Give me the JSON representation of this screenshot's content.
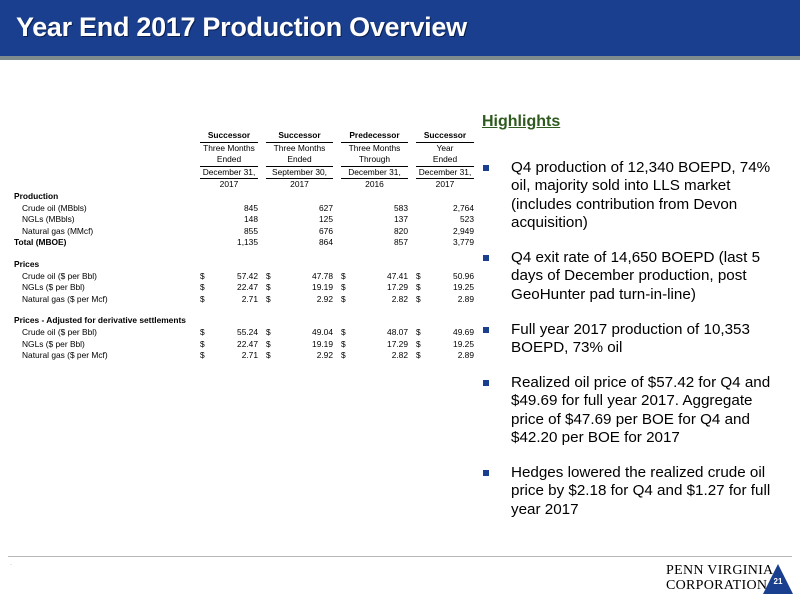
{
  "title": "Year End 2017 Production Overview",
  "table": {
    "headers": [
      [
        "Successor",
        "Successor",
        "Predecessor",
        "Successor"
      ],
      [
        "Three Months",
        "Three Months",
        "Three Months",
        "Year"
      ],
      [
        "Ended",
        "Ended",
        "Through",
        "Ended"
      ],
      [
        "December 31,",
        "September 30,",
        "December 31,",
        "December 31,"
      ],
      [
        "2017",
        "2017",
        "2016",
        "2017"
      ]
    ],
    "sections": [
      {
        "title": "Production",
        "rows": [
          {
            "label": "Crude oil (MBbls)",
            "values": [
              "845",
              "627",
              "583",
              "2,764"
            ]
          },
          {
            "label": "NGLs (MBbls)",
            "values": [
              "148",
              "125",
              "137",
              "523"
            ]
          },
          {
            "label": "Natural gas (MMcf)",
            "values": [
              "855",
              "676",
              "820",
              "2,949"
            ]
          }
        ],
        "total": {
          "label": "Total (MBOE)",
          "values": [
            "1,135",
            "864",
            "857",
            "3,779"
          ]
        }
      },
      {
        "title": "Prices",
        "rows": [
          {
            "label": "Crude oil ($ per Bbl)",
            "values": [
              "57.42",
              "47.78",
              "47.41",
              "50.96"
            ]
          },
          {
            "label": "NGLs ($ per Bbl)",
            "values": [
              "22.47",
              "19.19",
              "17.29",
              "19.25"
            ]
          },
          {
            "label": "Natural gas ($ per Mcf)",
            "values": [
              "2.71",
              "2.92",
              "2.82",
              "2.89"
            ]
          }
        ]
      },
      {
        "title": "Prices - Adjusted for derivative settlements",
        "rows": [
          {
            "label": "Crude oil ($ per Bbl)",
            "values": [
              "55.24",
              "49.04",
              "48.07",
              "49.69"
            ]
          },
          {
            "label": "NGLs ($ per Bbl)",
            "values": [
              "22.47",
              "19.19",
              "17.29",
              "19.25"
            ]
          },
          {
            "label": "Natural gas ($ per Mcf)",
            "values": [
              "2.71",
              "2.92",
              "2.82",
              "2.89"
            ]
          }
        ]
      }
    ],
    "currency_symbol": "$"
  },
  "highlights": {
    "title": "Highlights",
    "items": [
      "Q4 production of 12,340 BOEPD, 74% oil, majority sold into LLS market (includes contribution from Devon acquisition)",
      "Q4 exit rate of 14,650 BOEPD (last 5 days of December production, post GeoHunter pad turn-in-line)",
      "Full year 2017 production of 10,353 BOEPD, 73% oil",
      "Realized oil price of $57.42 for Q4 and $49.69 for full year 2017. Aggregate price of $47.69 per BOE for Q4 and $42.20 per BOE for 2017",
      "Hedges lowered the realized crude oil price by $2.18 for Q4 and $1.27 for full year 2017"
    ]
  },
  "footer": {
    "dot": "·",
    "logo_line1": "PENN VIRGINIA",
    "logo_line2": "CORPORATION",
    "page_number": "21"
  },
  "colors": {
    "title_bar": "#1a3f8f",
    "highlight_title": "#2f5a1e",
    "bullet": "#1a3f8f",
    "logo_mark": "#1a3f8f"
  }
}
